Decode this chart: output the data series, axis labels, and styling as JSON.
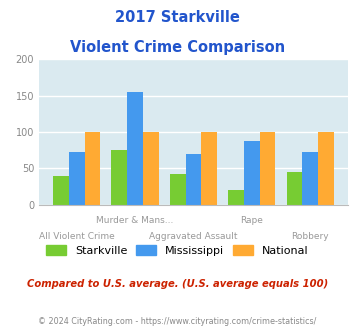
{
  "title_line1": "2017 Starkville",
  "title_line2": "Violent Crime Comparison",
  "starkville": [
    40,
    75,
    42,
    20,
    45
  ],
  "mississippi": [
    73,
    155,
    70,
    88,
    72
  ],
  "national": [
    100,
    100,
    100,
    100,
    100
  ],
  "top_labels": [
    [
      1,
      "Murder & Mans..."
    ],
    [
      3,
      "Rape"
    ]
  ],
  "bot_labels": [
    [
      0,
      "All Violent Crime"
    ],
    [
      2,
      "Aggravated Assault"
    ],
    [
      4,
      "Robbery"
    ]
  ],
  "color_starkville": "#77cc33",
  "color_mississippi": "#4499ee",
  "color_national": "#ffaa33",
  "ylim": [
    0,
    200
  ],
  "yticks": [
    0,
    50,
    100,
    150,
    200
  ],
  "bg_color": "#daeaf0",
  "title_color": "#2255cc",
  "label_color": "#999999",
  "legend_labels": [
    "Starkville",
    "Mississippi",
    "National"
  ],
  "footer_note": "Compared to U.S. average. (U.S. average equals 100)",
  "footer_note_color": "#cc2200",
  "copyright": "© 2024 CityRating.com - https://www.cityrating.com/crime-statistics/",
  "copyright_color": "#888888"
}
